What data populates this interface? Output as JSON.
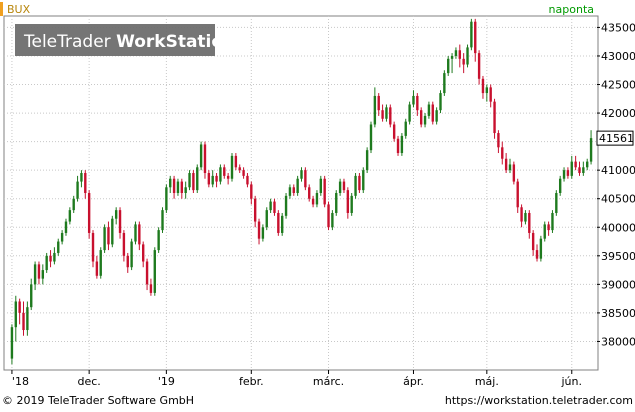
{
  "header": {
    "symbol": "BUX",
    "period": "naponta",
    "watermark": "TeleTrader WorkStation",
    "watermark_parts": [
      "TeleTrader ",
      "WorkStation"
    ],
    "last_price": "41561"
  },
  "footer": {
    "copyright": "© 2019 TeleTrader Software GmbH",
    "url": "https://workstation.teletrader.com"
  },
  "colors": {
    "up": "#1e7a1e",
    "down": "#c8102e",
    "accent": "#f0a020",
    "period_text": "#009a00",
    "watermark_bg": "#6e6e6e"
  },
  "chart_data": {
    "type": "candlestick",
    "title": "BUX",
    "frequency": "naponta",
    "ylim": [
      37500,
      43700
    ],
    "y_ticks": [
      38000,
      38500,
      39000,
      39500,
      40000,
      40500,
      41000,
      41500,
      42000,
      42500,
      43000,
      43500
    ],
    "y_tick_labels": [
      "38000",
      "38500",
      "39000",
      "39500",
      "40000",
      "40500",
      "41000",
      "",
      "42000",
      "42500",
      "43000",
      "43500"
    ],
    "x_ticks": [
      {
        "label": "'18",
        "index": 0
      },
      {
        "label": "dec.",
        "index": 20
      },
      {
        "label": "'19",
        "index": 40
      },
      {
        "label": "febr.",
        "index": 62
      },
      {
        "label": "márc.",
        "index": 82
      },
      {
        "label": "ápr.",
        "index": 104
      },
      {
        "label": "máj.",
        "index": 123
      },
      {
        "label": "jún.",
        "index": 145
      }
    ],
    "grid": true,
    "last_value": 41561,
    "candles": [
      [
        37700,
        38250,
        37600,
        38300
      ],
      [
        38250,
        38700,
        38000,
        38800
      ],
      [
        38700,
        38500,
        38300,
        38750
      ],
      [
        38500,
        38200,
        38100,
        38700
      ],
      [
        38200,
        38600,
        38100,
        38700
      ],
      [
        38600,
        39000,
        38550,
        39100
      ],
      [
        39000,
        39350,
        38900,
        39400
      ],
      [
        39350,
        39100,
        39000,
        39400
      ],
      [
        39100,
        39250,
        39000,
        39350
      ],
      [
        39250,
        39500,
        39200,
        39550
      ],
      [
        39500,
        39400,
        39300,
        39600
      ],
      [
        39400,
        39550,
        39350,
        39650
      ],
      [
        39550,
        39750,
        39500,
        39800
      ],
      [
        39750,
        39900,
        39700,
        39950
      ],
      [
        39900,
        40100,
        39850,
        40150
      ],
      [
        40100,
        40300,
        40050,
        40350
      ],
      [
        40300,
        40500,
        40250,
        40550
      ],
      [
        40500,
        40800,
        40450,
        40900
      ],
      [
        40800,
        40950,
        40700,
        41000
      ],
      [
        40950,
        40600,
        40500,
        41000
      ],
      [
        40600,
        39900,
        39800,
        40650
      ],
      [
        39900,
        39400,
        39300,
        39950
      ],
      [
        39400,
        39150,
        39100,
        39500
      ],
      [
        39150,
        39600,
        39100,
        39650
      ],
      [
        39600,
        40000,
        39550,
        40050
      ],
      [
        40000,
        39700,
        39600,
        40100
      ],
      [
        39700,
        40150,
        39650,
        40200
      ],
      [
        40150,
        40300,
        40050,
        40350
      ],
      [
        40300,
        39900,
        39800,
        40350
      ],
      [
        39900,
        39500,
        39400,
        39950
      ],
      [
        39500,
        39300,
        39200,
        39550
      ],
      [
        39300,
        39750,
        39250,
        39800
      ],
      [
        39750,
        40050,
        39700,
        40100
      ],
      [
        40050,
        39700,
        39600,
        40100
      ],
      [
        39700,
        39400,
        39300,
        39750
      ],
      [
        39400,
        39000,
        38900,
        39450
      ],
      [
        39000,
        38850,
        38800,
        39100
      ],
      [
        38850,
        39600,
        38800,
        39650
      ],
      [
        39600,
        39950,
        39550,
        40000
      ],
      [
        39950,
        40300,
        39900,
        40350
      ],
      [
        40300,
        40700,
        40250,
        40750
      ],
      [
        40700,
        40850,
        40600,
        40900
      ],
      [
        40850,
        40600,
        40500,
        40900
      ],
      [
        40600,
        40800,
        40550,
        40850
      ],
      [
        40800,
        40600,
        40500,
        40850
      ],
      [
        40600,
        40700,
        40500,
        40800
      ],
      [
        40700,
        40950,
        40650,
        41000
      ],
      [
        40950,
        40650,
        40600,
        41000
      ],
      [
        40650,
        41050,
        40600,
        41100
      ],
      [
        41050,
        41450,
        41000,
        41500
      ],
      [
        41450,
        40950,
        40850,
        41500
      ],
      [
        40950,
        40750,
        40700,
        41000
      ],
      [
        40750,
        40900,
        40700,
        41000
      ],
      [
        40900,
        40800,
        40700,
        40950
      ],
      [
        40800,
        41050,
        40750,
        41100
      ],
      [
        41050,
        40900,
        40850,
        41100
      ],
      [
        40900,
        40850,
        40750,
        40950
      ],
      [
        40850,
        41250,
        40800,
        41300
      ],
      [
        41250,
        41050,
        41000,
        41300
      ],
      [
        41050,
        41000,
        40950,
        41100
      ],
      [
        41000,
        40900,
        40850,
        41050
      ],
      [
        40900,
        40750,
        40700,
        40950
      ],
      [
        40750,
        40500,
        40400,
        40800
      ],
      [
        40500,
        40100,
        40000,
        40550
      ],
      [
        40100,
        39800,
        39700,
        40150
      ],
      [
        39800,
        40000,
        39750,
        40050
      ],
      [
        40000,
        40300,
        39950,
        40350
      ],
      [
        40300,
        40450,
        40250,
        40500
      ],
      [
        40450,
        40250,
        40200,
        40500
      ],
      [
        40250,
        39900,
        39850,
        40300
      ],
      [
        39900,
        40200,
        39850,
        40250
      ],
      [
        40200,
        40550,
        40150,
        40600
      ],
      [
        40550,
        40700,
        40500,
        40750
      ],
      [
        40700,
        40600,
        40550,
        40750
      ],
      [
        40600,
        40850,
        40550,
        40900
      ],
      [
        40850,
        41000,
        40800,
        41050
      ],
      [
        41000,
        40700,
        40650,
        41050
      ],
      [
        40700,
        40500,
        40450,
        40750
      ],
      [
        40500,
        40400,
        40350,
        40550
      ],
      [
        40400,
        40600,
        40350,
        40650
      ],
      [
        40600,
        40850,
        40550,
        40900
      ],
      [
        40850,
        40400,
        40350,
        40900
      ],
      [
        40400,
        40000,
        39950,
        40450
      ],
      [
        40000,
        40250,
        39950,
        40300
      ],
      [
        40250,
        40600,
        40200,
        40650
      ],
      [
        40600,
        40800,
        40550,
        40850
      ],
      [
        40800,
        40650,
        40600,
        40850
      ],
      [
        40650,
        40250,
        40150,
        40700
      ],
      [
        40250,
        40550,
        40200,
        40600
      ],
      [
        40550,
        40900,
        40500,
        40950
      ],
      [
        40900,
        40650,
        40600,
        40950
      ],
      [
        40650,
        41000,
        40600,
        41050
      ],
      [
        41000,
        41350,
        40950,
        41400
      ],
      [
        41350,
        41800,
        41300,
        41850
      ],
      [
        41800,
        42300,
        41750,
        42450
      ],
      [
        42300,
        42050,
        41950,
        42350
      ],
      [
        42050,
        41900,
        41850,
        42150
      ],
      [
        41900,
        42100,
        41850,
        42150
      ],
      [
        42100,
        41800,
        41750,
        42150
      ],
      [
        41800,
        41550,
        41500,
        41850
      ],
      [
        41550,
        41300,
        41250,
        41600
      ],
      [
        41300,
        41600,
        41250,
        41650
      ],
      [
        41600,
        41850,
        41550,
        41900
      ],
      [
        41850,
        42150,
        41800,
        42200
      ],
      [
        42150,
        42300,
        42100,
        42400
      ],
      [
        42300,
        42050,
        41950,
        42350
      ],
      [
        42050,
        41800,
        41750,
        42100
      ],
      [
        41800,
        41950,
        41750,
        42000
      ],
      [
        41950,
        42150,
        41900,
        42200
      ],
      [
        42150,
        41850,
        41800,
        42200
      ],
      [
        41850,
        42050,
        41800,
        42100
      ],
      [
        42050,
        42350,
        42000,
        42400
      ],
      [
        42350,
        42700,
        42300,
        42750
      ],
      [
        42700,
        42950,
        42650,
        43000
      ],
      [
        42950,
        43000,
        42700,
        43050
      ],
      [
        43000,
        43100,
        42950,
        43150
      ],
      [
        43100,
        42950,
        42800,
        43200
      ],
      [
        42950,
        42850,
        42700,
        43050
      ],
      [
        42850,
        43150,
        42800,
        43200
      ],
      [
        43150,
        43600,
        43100,
        43650
      ],
      [
        43600,
        43050,
        42900,
        43650
      ],
      [
        43050,
        42600,
        42500,
        43100
      ],
      [
        42600,
        42350,
        42250,
        42650
      ],
      [
        42350,
        42450,
        42200,
        42500
      ],
      [
        42450,
        42200,
        42100,
        42500
      ],
      [
        42200,
        41650,
        41550,
        42250
      ],
      [
        41650,
        41400,
        41300,
        41700
      ],
      [
        41400,
        41200,
        41100,
        41500
      ],
      [
        41200,
        41000,
        40950,
        41300
      ],
      [
        41000,
        41100,
        40950,
        41200
      ],
      [
        41100,
        40800,
        40750,
        41150
      ],
      [
        40800,
        40350,
        40250,
        40850
      ],
      [
        40350,
        40100,
        40000,
        40400
      ],
      [
        40100,
        40250,
        40050,
        40300
      ],
      [
        40250,
        39900,
        39800,
        40300
      ],
      [
        39900,
        39600,
        39500,
        39950
      ],
      [
        39600,
        39450,
        39400,
        39700
      ],
      [
        39450,
        39800,
        39400,
        39850
      ],
      [
        39800,
        40050,
        39750,
        40100
      ],
      [
        40050,
        39950,
        39850,
        40100
      ],
      [
        39950,
        40250,
        39900,
        40300
      ],
      [
        40250,
        40600,
        40200,
        40650
      ],
      [
        40600,
        40850,
        40550,
        40900
      ],
      [
        40850,
        41000,
        40800,
        41050
      ],
      [
        41000,
        40900,
        40850,
        41050
      ],
      [
        40900,
        41150,
        40850,
        41250
      ],
      [
        41150,
        41050,
        41000,
        41250
      ],
      [
        41050,
        40950,
        40900,
        41150
      ],
      [
        40950,
        41050,
        40900,
        41150
      ],
      [
        41050,
        41150,
        41000,
        41200
      ],
      [
        41150,
        41561,
        41100,
        41700
      ]
    ]
  }
}
